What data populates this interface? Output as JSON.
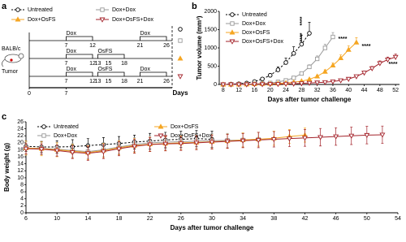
{
  "panel_labels": [
    "a",
    "b",
    "c"
  ],
  "schedule": {
    "legend": [
      {
        "name": "Untreated",
        "color": "#000000",
        "marker": "circle",
        "open": true,
        "dashed": true
      },
      {
        "name": "Dox+Dox",
        "color": "#999999",
        "marker": "square",
        "open": true,
        "dashed": false
      },
      {
        "name": "Dox+OsFS",
        "color": "#f5a623",
        "marker": "triangle",
        "open": false,
        "dashed": false
      },
      {
        "name": "Dox+OsFS+Dox",
        "color": "#a3222a",
        "marker": "triangle-down",
        "open": true,
        "dashed": false
      }
    ],
    "mouse": "BALB/c",
    "tumor": "Tumor",
    "rows": [
      {
        "color": "#999999",
        "marker": "square",
        "open": true,
        "blocks": [
          {
            "label": "Dox",
            "days": [
              7,
              12
            ]
          },
          {
            "label": "Dox",
            "days": [
              21,
              26
            ]
          }
        ],
        "ticks": [
          7,
          12,
          21,
          26
        ]
      },
      {
        "color": "#f5a623",
        "marker": "triangle",
        "open": false,
        "blocks": [
          {
            "label": "Dox",
            "days": [
              7,
              12
            ]
          },
          {
            "label": "OsFS",
            "days": [
              13,
              18
            ]
          }
        ],
        "ticks": [
          7,
          12,
          13,
          15,
          18
        ]
      },
      {
        "color": "#a3222a",
        "marker": "triangle-down",
        "open": true,
        "blocks": [
          {
            "label": "Dox",
            "days": [
              7,
              12
            ]
          },
          {
            "label": "OsFS",
            "days": [
              13,
              18
            ]
          },
          {
            "label": "Dox",
            "days": [
              21,
              26
            ]
          }
        ],
        "ticks": [
          7,
          12,
          13,
          15,
          18,
          21,
          26
        ]
      }
    ],
    "axis_ticks": [
      0,
      7
    ],
    "axis_label": "Days"
  },
  "chart_data": [
    {
      "type": "line",
      "ylabel": "Tumor volume (mm³)",
      "xlabel": "Days after tumor challenge",
      "x": [
        8,
        10,
        12,
        14,
        16,
        18,
        20,
        22,
        24,
        26,
        28,
        30,
        32,
        34,
        36,
        38,
        40,
        42,
        44,
        46,
        48,
        50,
        52
      ],
      "xlim": [
        7,
        53
      ],
      "xticks": [
        8,
        12,
        16,
        20,
        24,
        28,
        32,
        36,
        40,
        44,
        48,
        52
      ],
      "ylim": [
        0,
        2000
      ],
      "yticks": [
        0,
        500,
        1000,
        1500,
        2000
      ],
      "error_style": "upper",
      "annotations": [
        "****",
        "****",
        "****",
        "****",
        "****"
      ],
      "series": [
        {
          "name": "Untreated",
          "color": "#000000",
          "marker": "circle",
          "open": true,
          "dashed": true,
          "values": [
            0,
            10,
            20,
            40,
            80,
            150,
            250,
            400,
            600,
            850,
            1100,
            1400,
            null,
            null,
            null,
            null,
            null,
            null,
            null,
            null,
            null,
            null,
            null
          ],
          "errors": [
            0,
            2,
            5,
            10,
            20,
            30,
            50,
            80,
            120,
            180,
            250,
            300,
            null,
            null,
            null,
            null,
            null,
            null,
            null,
            null,
            null,
            null,
            null
          ]
        },
        {
          "name": "Dox+Dox",
          "color": "#999999",
          "marker": "square",
          "open": true,
          "dashed": false,
          "values": [
            0,
            0,
            5,
            10,
            15,
            25,
            40,
            70,
            110,
            180,
            300,
            480,
            700,
            1000,
            1300,
            null,
            null,
            null,
            null,
            null,
            null,
            null,
            null
          ],
          "errors": [
            0,
            0,
            2,
            3,
            5,
            8,
            10,
            15,
            20,
            30,
            40,
            60,
            80,
            100,
            120,
            null,
            null,
            null,
            null,
            null,
            null,
            null,
            null
          ]
        },
        {
          "name": "Dox+OsFS",
          "color": "#f5a623",
          "marker": "triangle",
          "open": false,
          "dashed": false,
          "values": [
            0,
            0,
            0,
            5,
            10,
            15,
            20,
            30,
            40,
            60,
            90,
            140,
            220,
            350,
            520,
            720,
            950,
            1150,
            null,
            null,
            null,
            null,
            null
          ],
          "errors": [
            0,
            0,
            0,
            2,
            3,
            4,
            5,
            8,
            10,
            15,
            20,
            25,
            35,
            50,
            70,
            90,
            110,
            130,
            null,
            null,
            null,
            null,
            null
          ]
        },
        {
          "name": "Dox+OsFS+Dox",
          "color": "#a3222a",
          "marker": "triangle-down",
          "open": true,
          "dashed": false,
          "values": [
            0,
            0,
            0,
            0,
            5,
            5,
            10,
            10,
            15,
            20,
            30,
            40,
            50,
            60,
            80,
            110,
            150,
            220,
            320,
            440,
            580,
            680,
            750
          ],
          "errors": [
            0,
            0,
            0,
            0,
            2,
            2,
            3,
            3,
            4,
            5,
            6,
            8,
            10,
            12,
            15,
            20,
            25,
            35,
            45,
            55,
            65,
            70,
            80
          ]
        }
      ]
    },
    {
      "type": "line",
      "ylabel": "Body weight (g)",
      "xlabel": "Days after tumor challenge",
      "x": [
        6,
        8,
        10,
        12,
        14,
        16,
        18,
        20,
        22,
        24,
        26,
        28,
        30,
        32,
        34,
        36,
        38,
        40,
        42,
        44,
        46,
        48,
        50,
        52
      ],
      "xlim": [
        6,
        54
      ],
      "xticks": [
        6,
        10,
        14,
        18,
        22,
        26,
        30,
        34,
        38,
        42,
        46,
        50,
        54
      ],
      "ylim": [
        0,
        26
      ],
      "yticks": [
        0,
        2,
        4,
        6,
        8,
        10,
        12,
        14,
        16,
        18,
        20,
        22,
        24,
        26
      ],
      "error_style": "both",
      "series": [
        {
          "name": "Untreated",
          "color": "#000000",
          "marker": "circle",
          "open": true,
          "dashed": true,
          "values": [
            19,
            18.8,
            18.8,
            18.9,
            19.2,
            19.5,
            19.8,
            20.2,
            20.5,
            20.8,
            21,
            21.2,
            21,
            null,
            null,
            null,
            null,
            null,
            null,
            null,
            null,
            null,
            null,
            null
          ],
          "errors": [
            1.5,
            1.6,
            1.8,
            2,
            2,
            2,
            2,
            2,
            2.2,
            2.2,
            2.3,
            2.3,
            2.3,
            null,
            null,
            null,
            null,
            null,
            null,
            null,
            null,
            null,
            null,
            null
          ]
        },
        {
          "name": "Dox+Dox",
          "color": "#999999",
          "marker": "square",
          "open": true,
          "dashed": false,
          "values": [
            18.5,
            18.4,
            18.2,
            17.8,
            17.5,
            18,
            18.8,
            19.5,
            20,
            20.2,
            20.3,
            20.5,
            20.6,
            20.7,
            20.8,
            21,
            null,
            null,
            null,
            null,
            null,
            null,
            null,
            null
          ],
          "errors": [
            1.8,
            1.8,
            2,
            2,
            2,
            2,
            2,
            2,
            2,
            2,
            2,
            2,
            2,
            2,
            2,
            2,
            null,
            null,
            null,
            null,
            null,
            null,
            null,
            null
          ]
        },
        {
          "name": "Dox+OsFS",
          "color": "#f5a623",
          "marker": "triangle",
          "open": false,
          "dashed": false,
          "values": [
            18.5,
            18.3,
            18,
            17.6,
            17.2,
            17.8,
            18.6,
            19.2,
            19.6,
            19.8,
            20,
            20.1,
            20.3,
            20.5,
            20.8,
            21,
            21.3,
            21.8,
            22.2,
            null,
            null,
            null,
            null,
            null
          ],
          "errors": [
            2,
            2,
            2,
            2,
            2,
            2,
            2,
            2,
            2,
            2,
            2,
            2,
            2,
            2,
            2,
            2,
            2,
            2,
            2,
            null,
            null,
            null,
            null,
            null
          ]
        },
        {
          "name": "Dox+OsFS+Dox",
          "color": "#a3222a",
          "marker": "triangle-down",
          "open": true,
          "dashed": false,
          "values": [
            18.3,
            18.2,
            17.8,
            17.3,
            17,
            17.5,
            18.3,
            19,
            19.5,
            19.7,
            19.8,
            20,
            20.2,
            20.4,
            20.6,
            20.8,
            21,
            21.2,
            21.4,
            21.6,
            21.8,
            22,
            22.2,
            22.3
          ],
          "errors": [
            1.5,
            1.5,
            1.6,
            1.8,
            2,
            2,
            2,
            2,
            2,
            2,
            2,
            2,
            2,
            2,
            2,
            2.2,
            2.2,
            2.3,
            2.4,
            2.5,
            2.5,
            2.5,
            2.5,
            2.5
          ]
        }
      ]
    }
  ]
}
